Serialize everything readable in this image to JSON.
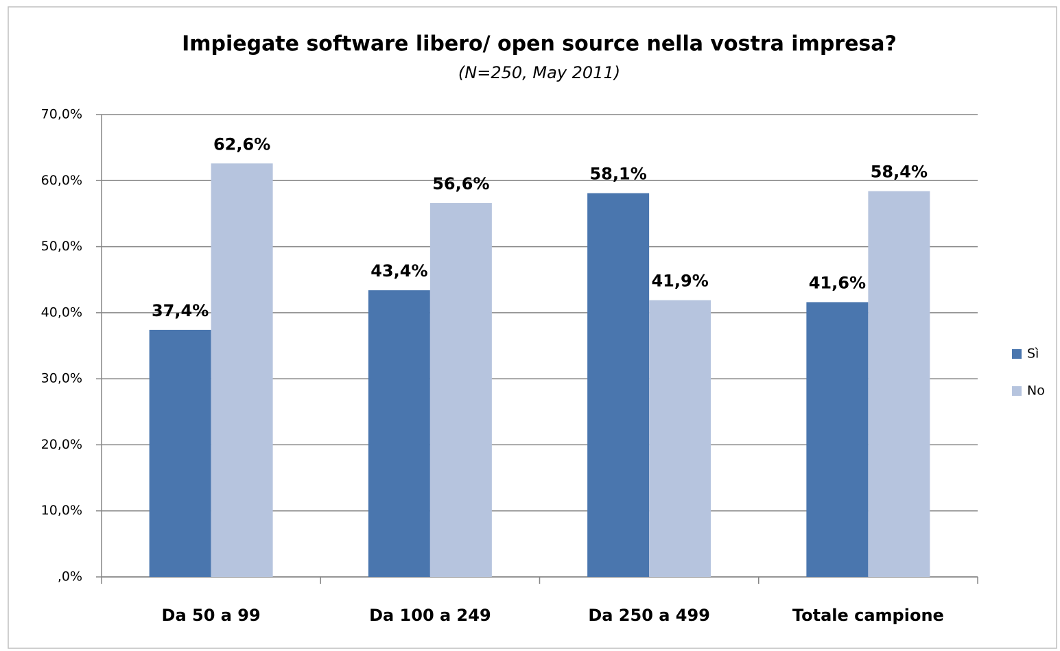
{
  "chart_data": {
    "type": "bar",
    "title": "Impiegate software libero/ open source nella vostra impresa?",
    "subtitle": "(N=250, May 2011)",
    "categories": [
      "Da 50 a 99",
      "Da 100 a 249",
      "Da 250 a 499",
      "Totale campione"
    ],
    "series": [
      {
        "name": "Sì",
        "color": "#4a76ae",
        "values": [
          37.4,
          43.4,
          58.1,
          41.6
        ],
        "value_labels": [
          "37,4%",
          "43,4%",
          "58,1%",
          "41,6%"
        ]
      },
      {
        "name": "No",
        "color": "#b6c4de",
        "values": [
          62.6,
          56.6,
          41.9,
          58.4
        ],
        "value_labels": [
          "62,6%",
          "56,6%",
          "41,9%",
          "58,4%"
        ]
      }
    ],
    "ylim": [
      0,
      70
    ],
    "yticks": [
      {
        "value": 0,
        "label": ",0%"
      },
      {
        "value": 10,
        "label": "10,0%"
      },
      {
        "value": 20,
        "label": "20,0%"
      },
      {
        "value": 30,
        "label": "30,0%"
      },
      {
        "value": 40,
        "label": "40,0%"
      },
      {
        "value": 50,
        "label": "50,0%"
      },
      {
        "value": 60,
        "label": "60,0%"
      },
      {
        "value": 70,
        "label": "70,0%"
      }
    ],
    "grid": true,
    "legend": "right"
  }
}
